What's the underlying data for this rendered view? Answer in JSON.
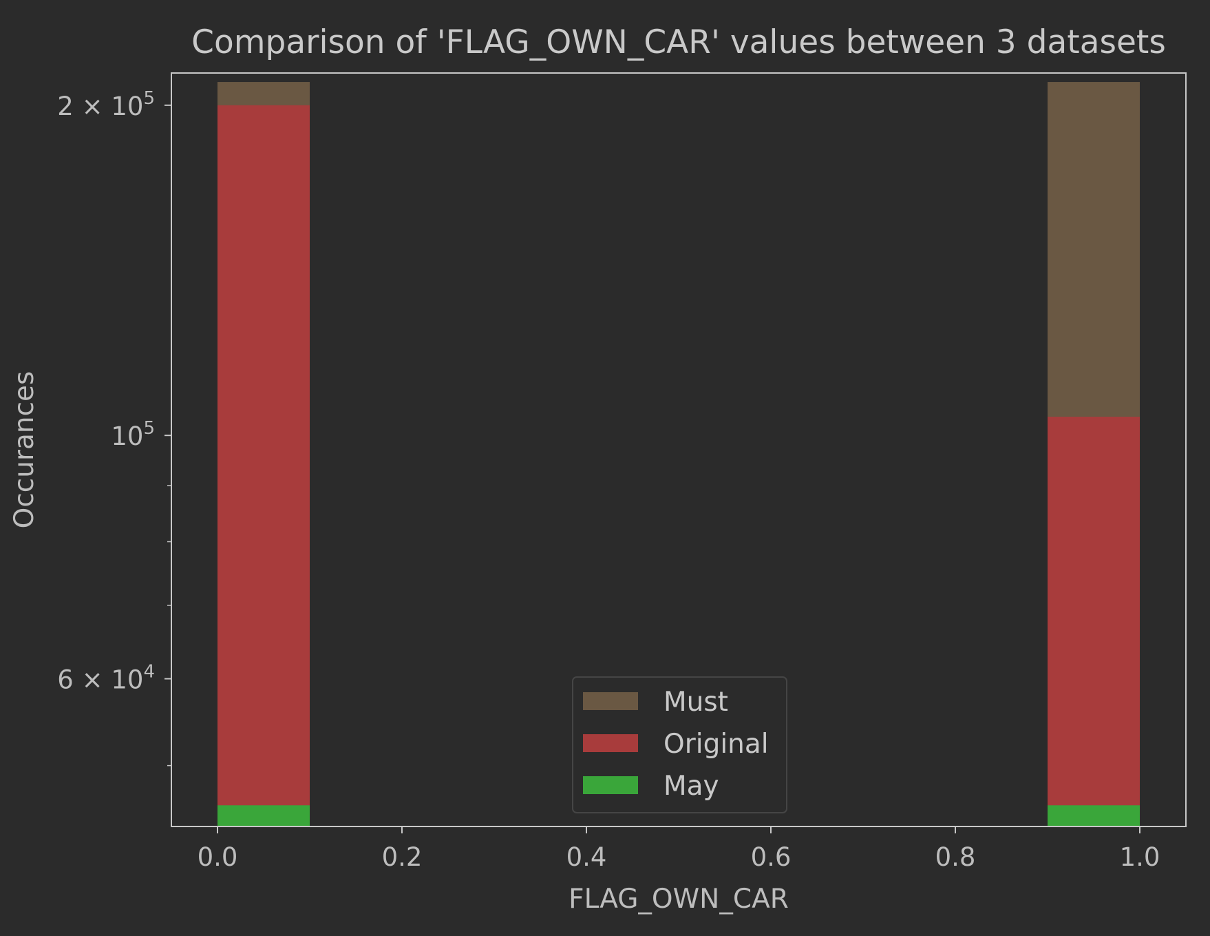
{
  "chart_data": {
    "type": "bar",
    "title": "Comparison of 'FLAG_OWN_CAR' values between 3 datasets",
    "xlabel": "FLAG_OWN_CAR",
    "ylabel": "Occurances",
    "xlim": [
      -0.05,
      1.05
    ],
    "ylim": [
      44000,
      214000
    ],
    "yscale": "log",
    "bin_width": 0.1,
    "x_ticks": [
      {
        "value": 0.0,
        "label": "0.0"
      },
      {
        "value": 0.2,
        "label": "0.2"
      },
      {
        "value": 0.4,
        "label": "0.4"
      },
      {
        "value": 0.6,
        "label": "0.6"
      },
      {
        "value": 0.8,
        "label": "0.8"
      },
      {
        "value": 1.0,
        "label": "1.0"
      }
    ],
    "y_major_ticks": [
      {
        "value": 60000,
        "label": "6 × 10^4",
        "mantissa": "6 × 10",
        "exponent": "4"
      },
      {
        "value": 100000,
        "label": "10^5",
        "mantissa": "10",
        "exponent": "5"
      },
      {
        "value": 200000,
        "label": "2 × 10^5",
        "mantissa": "2 × 10",
        "exponent": "5"
      }
    ],
    "y_minor_ticks": [
      50000,
      70000,
      80000,
      90000
    ],
    "grid": false,
    "legend_position": "lower-center",
    "series": [
      {
        "name": "Must",
        "color": "#6a5843",
        "bins": [
          {
            "x": 0.0,
            "value": 210000
          },
          {
            "x": 0.9,
            "value": 210000
          }
        ]
      },
      {
        "name": "Original",
        "color": "#a83c3c",
        "bins": [
          {
            "x": 0.0,
            "value": 200000
          },
          {
            "x": 0.9,
            "value": 104000
          }
        ]
      },
      {
        "name": "May",
        "color": "#3aa63a",
        "bins": [
          {
            "x": 0.0,
            "value": 46000
          },
          {
            "x": 0.9,
            "value": 46000
          }
        ]
      }
    ]
  },
  "colors": {
    "background": "#2b2b2b",
    "axes_frame": "#c8c8c8",
    "text": "#bdbdbd"
  }
}
